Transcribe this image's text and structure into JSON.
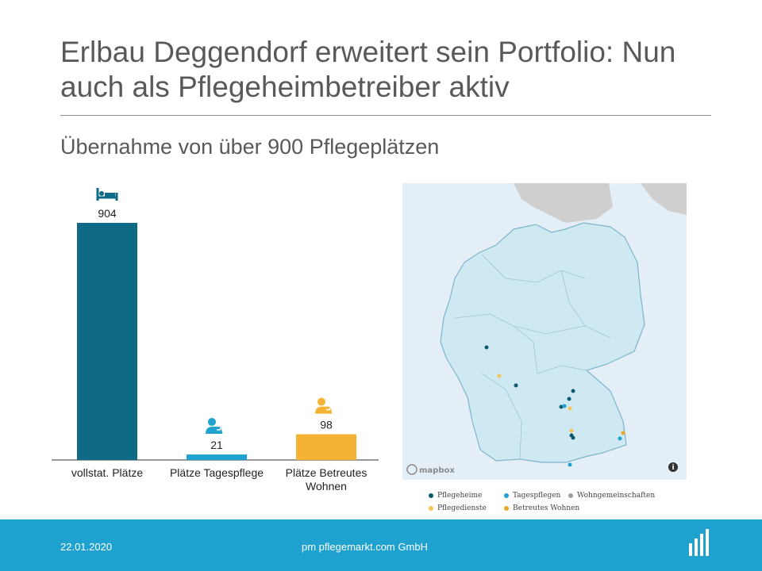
{
  "title": "Erlbau Deggendorf erweitert sein Portfolio: Nun auch als Pflegeheimbetreiber aktiv",
  "subtitle": "Übernahme von über 900 Pflegeplätzen",
  "chart_data": {
    "type": "bar",
    "categories": [
      "vollstat.  Plätze",
      "Plätze Tagespflege",
      "Plätze Betreutes Wohnen"
    ],
    "values": [
      904,
      21,
      98
    ],
    "colors": [
      "#0e6a86",
      "#1fa2cf",
      "#f5b335"
    ],
    "icons": [
      "bed-icon",
      "person-care-icon",
      "person-care-icon"
    ],
    "ylim": [
      0,
      904
    ]
  },
  "map": {
    "attribution": "mapbox",
    "legend": [
      {
        "label": "Pflegeheime",
        "color": "#0e5a6e"
      },
      {
        "label": "Tagespflegen",
        "color": "#1fa2cf"
      },
      {
        "label": "Wohngemeinschaften",
        "color": "#9e9e9e"
      },
      {
        "label": "Pflegedienste",
        "color": "#f5c55a"
      },
      {
        "label": "Betreutes Wohnen",
        "color": "#e8a72a"
      }
    ]
  },
  "footer": {
    "date": "22.01.2020",
    "company": "pm pflegemarkt.com GmbH"
  }
}
